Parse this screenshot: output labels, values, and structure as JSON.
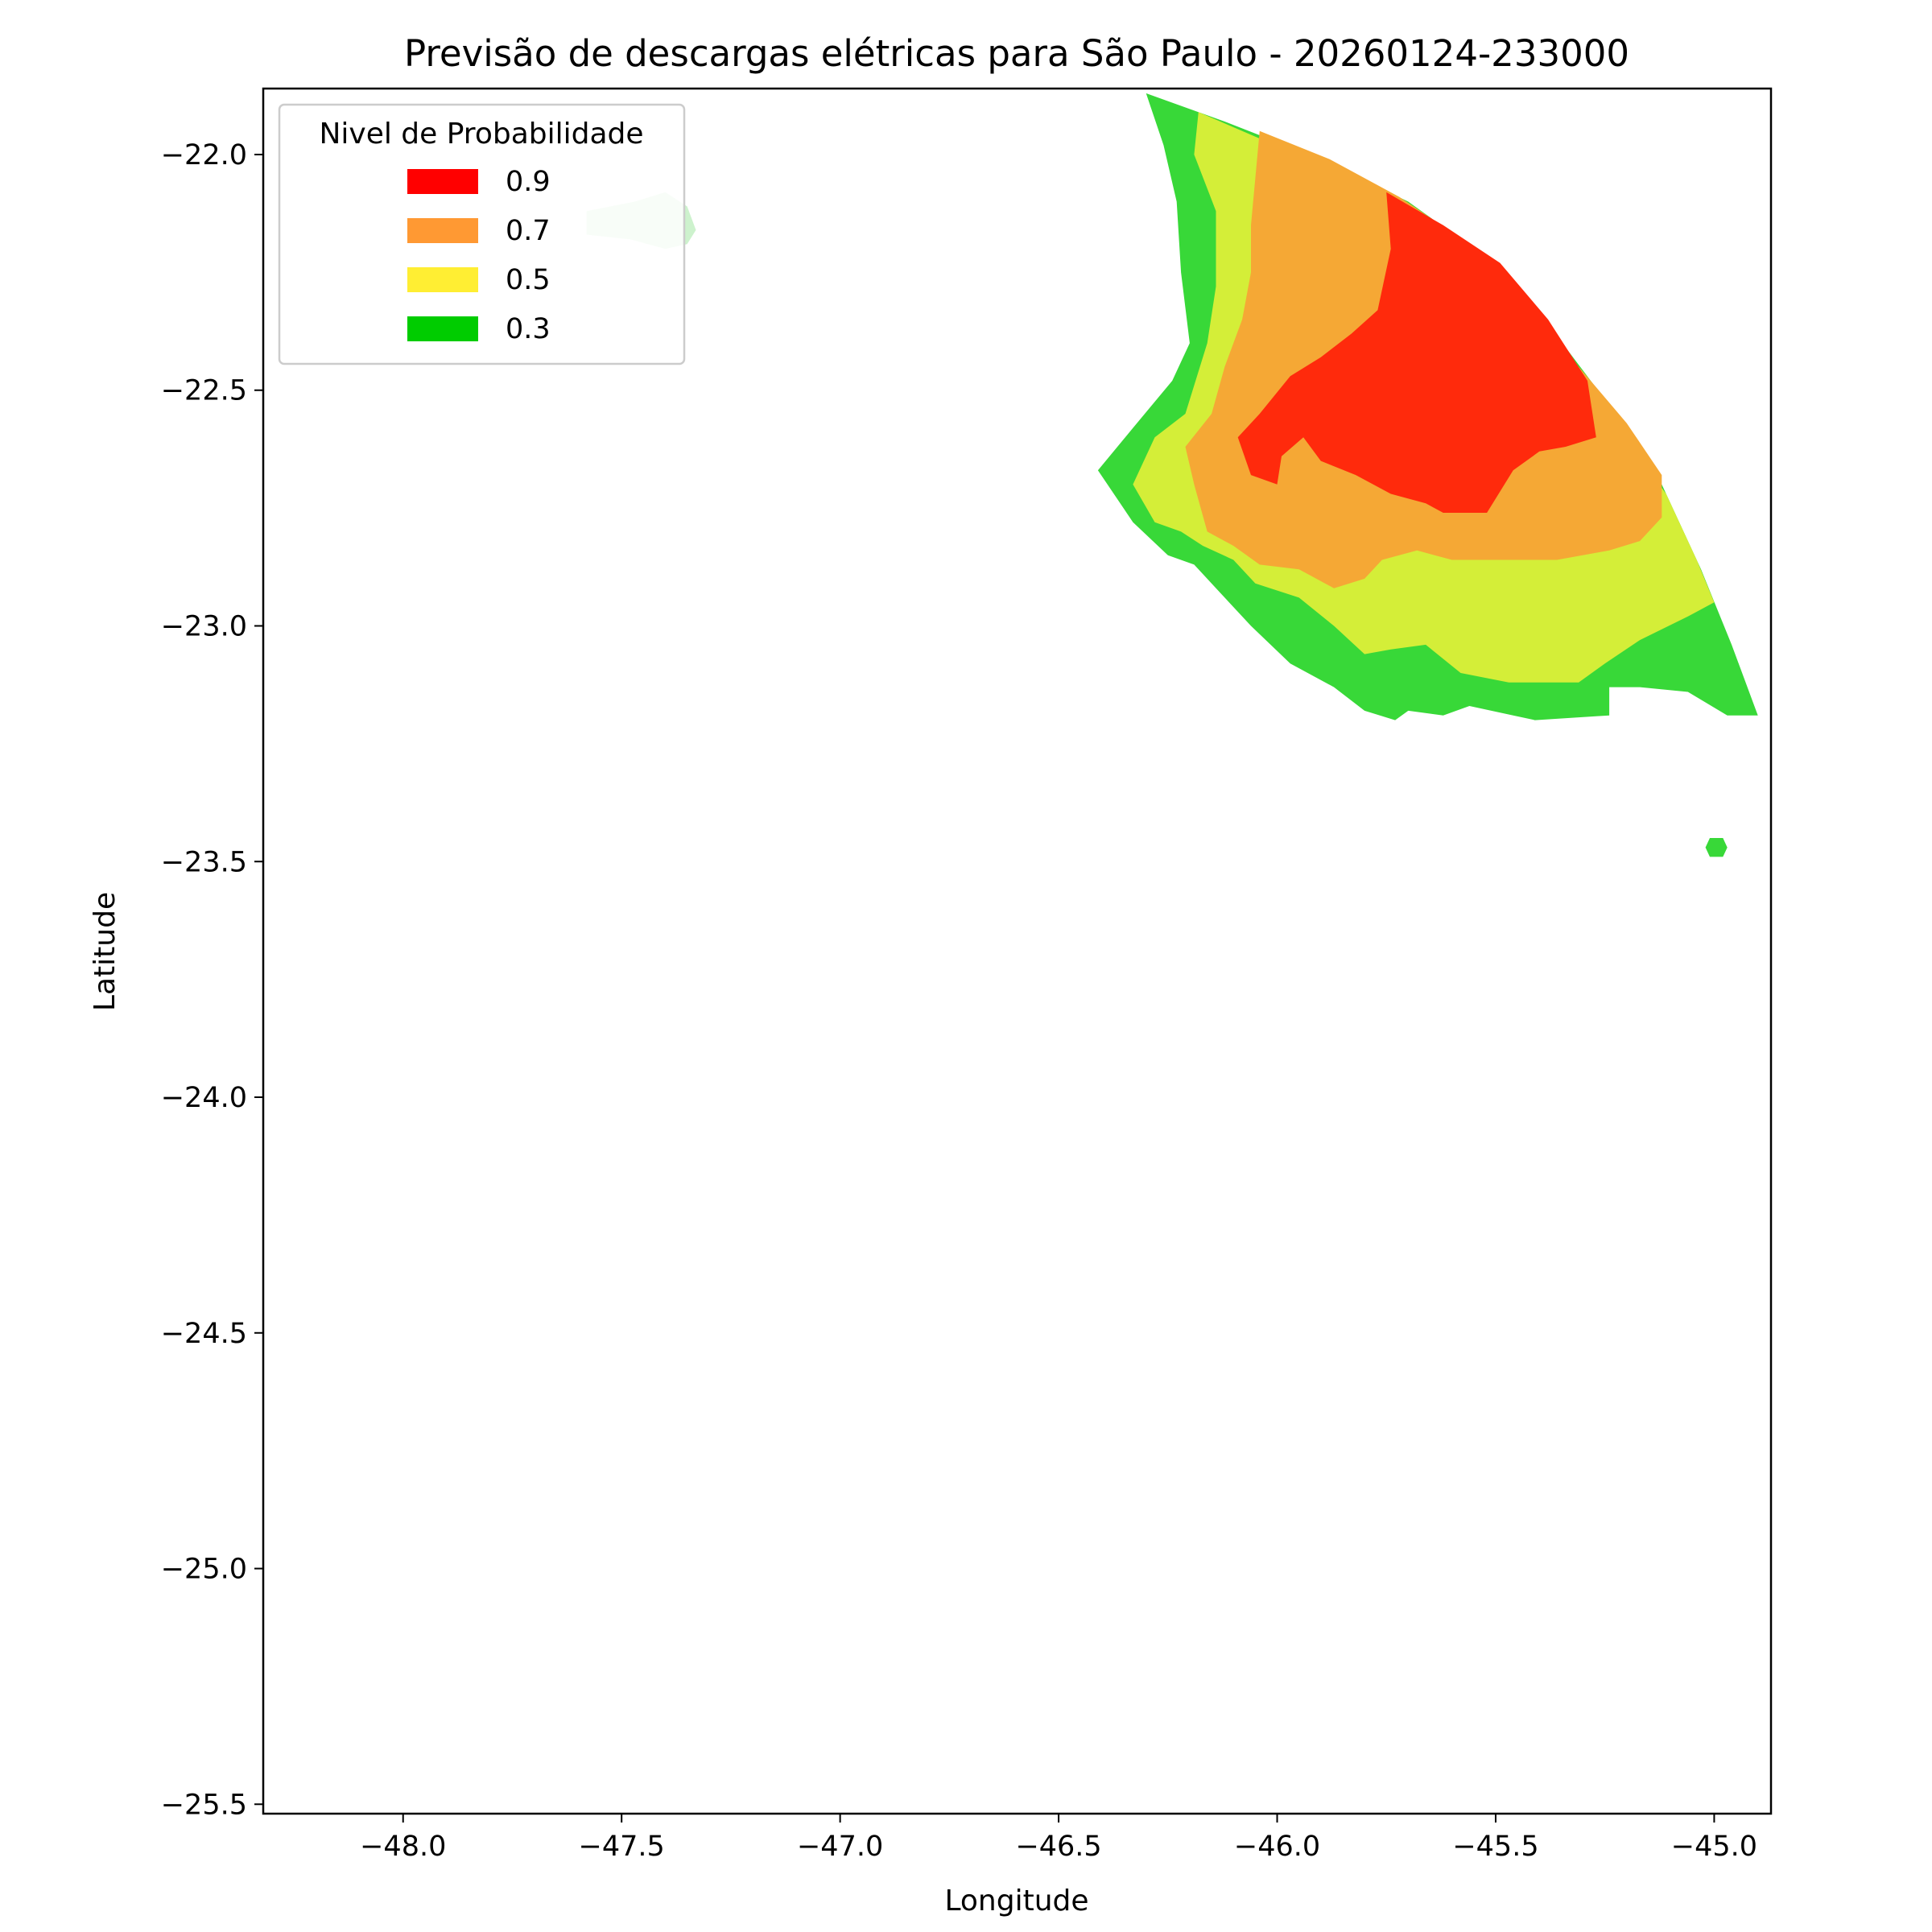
{
  "chart_data": {
    "type": "map",
    "title": "Previsão de descargas elétricas para São Paulo - 20260124-233000",
    "xlabel": "Longitude",
    "ylabel": "Latitude",
    "xlim": [
      -48.32,
      -44.87
    ],
    "ylim": [
      -25.52,
      -21.86
    ],
    "xticks": [
      -48.0,
      -47.5,
      -47.0,
      -46.5,
      -46.0,
      -45.5,
      -45.0
    ],
    "xtick_labels": [
      "−48.0",
      "−47.5",
      "−47.0",
      "−46.5",
      "−46.0",
      "−45.5",
      "−45.0"
    ],
    "yticks": [
      -22.0,
      -22.5,
      -23.0,
      -23.5,
      -24.0,
      -24.5,
      -25.0,
      -25.5
    ],
    "ytick_labels": [
      "−22.0",
      "−22.5",
      "−23.0",
      "−23.5",
      "−24.0",
      "−24.5",
      "−25.0",
      "−25.5"
    ],
    "grid": false,
    "legend": {
      "title": "Nivel de Probabilidade",
      "placement": "top-left",
      "entries": [
        {
          "label": "0.9",
          "color": "#ff0000"
        },
        {
          "label": "0.7",
          "color": "#ff9933"
        },
        {
          "label": "0.5",
          "color": "#ffee33"
        },
        {
          "label": "0.3",
          "color": "#00cc00"
        }
      ]
    },
    "regions": [
      {
        "level": "0.3",
        "color": "#38d838",
        "polygon": [
          [
            -46.3,
            -21.87
          ],
          [
            -46.12,
            -21.93
          ],
          [
            -45.9,
            -22.01
          ],
          [
            -45.7,
            -22.1
          ],
          [
            -45.52,
            -22.22
          ],
          [
            -45.38,
            -22.36
          ],
          [
            -45.25,
            -22.52
          ],
          [
            -45.12,
            -22.7
          ],
          [
            -45.03,
            -22.88
          ],
          [
            -44.96,
            -23.04
          ],
          [
            -44.9,
            -23.19
          ],
          [
            -44.97,
            -23.19
          ],
          [
            -45.06,
            -23.14
          ],
          [
            -45.17,
            -23.13
          ],
          [
            -45.24,
            -23.13
          ],
          [
            -45.24,
            -23.19
          ],
          [
            -45.41,
            -23.2
          ],
          [
            -45.56,
            -23.17
          ],
          [
            -45.62,
            -23.19
          ],
          [
            -45.7,
            -23.18
          ],
          [
            -45.73,
            -23.2
          ],
          [
            -45.8,
            -23.18
          ],
          [
            -45.87,
            -23.13
          ],
          [
            -45.97,
            -23.08
          ],
          [
            -46.06,
            -23.0
          ],
          [
            -46.13,
            -22.93
          ],
          [
            -46.19,
            -22.87
          ],
          [
            -46.25,
            -22.85
          ],
          [
            -46.33,
            -22.78
          ],
          [
            -46.41,
            -22.67
          ],
          [
            -46.33,
            -22.58
          ],
          [
            -46.24,
            -22.48
          ],
          [
            -46.2,
            -22.4
          ],
          [
            -46.22,
            -22.25
          ],
          [
            -46.23,
            -22.1
          ],
          [
            -46.26,
            -21.98
          ]
        ]
      },
      {
        "level": "0.5",
        "color": "#d4ee38",
        "polygon": [
          [
            -46.18,
            -21.91
          ],
          [
            -45.98,
            -21.99
          ],
          [
            -45.8,
            -22.08
          ],
          [
            -45.62,
            -22.18
          ],
          [
            -45.47,
            -22.3
          ],
          [
            -45.34,
            -22.44
          ],
          [
            -45.22,
            -22.58
          ],
          [
            -45.11,
            -22.72
          ],
          [
            -45.04,
            -22.86
          ],
          [
            -45.0,
            -22.95
          ],
          [
            -45.06,
            -22.98
          ],
          [
            -45.17,
            -23.03
          ],
          [
            -45.25,
            -23.08
          ],
          [
            -45.31,
            -23.12
          ],
          [
            -45.47,
            -23.12
          ],
          [
            -45.58,
            -23.1
          ],
          [
            -45.66,
            -23.04
          ],
          [
            -45.74,
            -23.05
          ],
          [
            -45.8,
            -23.06
          ],
          [
            -45.87,
            -23.0
          ],
          [
            -45.95,
            -22.94
          ],
          [
            -46.05,
            -22.91
          ],
          [
            -46.1,
            -22.86
          ],
          [
            -46.17,
            -22.83
          ],
          [
            -46.22,
            -22.8
          ],
          [
            -46.28,
            -22.78
          ],
          [
            -46.33,
            -22.7
          ],
          [
            -46.28,
            -22.6
          ],
          [
            -46.21,
            -22.55
          ],
          [
            -46.16,
            -22.4
          ],
          [
            -46.14,
            -22.28
          ],
          [
            -46.14,
            -22.12
          ],
          [
            -46.19,
            -22.0
          ]
        ]
      },
      {
        "level": "0.7",
        "color": "#f5a835",
        "polygon": [
          [
            -46.04,
            -21.95
          ],
          [
            -45.88,
            -22.01
          ],
          [
            -45.72,
            -22.09
          ],
          [
            -45.56,
            -22.19
          ],
          [
            -45.43,
            -22.32
          ],
          [
            -45.31,
            -22.45
          ],
          [
            -45.2,
            -22.57
          ],
          [
            -45.12,
            -22.68
          ],
          [
            -45.12,
            -22.77
          ],
          [
            -45.17,
            -22.82
          ],
          [
            -45.24,
            -22.84
          ],
          [
            -45.36,
            -22.86
          ],
          [
            -45.47,
            -22.86
          ],
          [
            -45.6,
            -22.86
          ],
          [
            -45.68,
            -22.84
          ],
          [
            -45.76,
            -22.86
          ],
          [
            -45.8,
            -22.9
          ],
          [
            -45.87,
            -22.92
          ],
          [
            -45.95,
            -22.88
          ],
          [
            -46.04,
            -22.87
          ],
          [
            -46.1,
            -22.83
          ],
          [
            -46.16,
            -22.8
          ],
          [
            -46.19,
            -22.7
          ],
          [
            -46.21,
            -22.62
          ],
          [
            -46.15,
            -22.55
          ],
          [
            -46.12,
            -22.45
          ],
          [
            -46.08,
            -22.35
          ],
          [
            -46.06,
            -22.25
          ],
          [
            -46.06,
            -22.15
          ],
          [
            -46.05,
            -22.05
          ]
        ]
      },
      {
        "level": "0.9",
        "color": "#ff2a0c",
        "polygon": [
          [
            -45.75,
            -22.08
          ],
          [
            -45.62,
            -22.15
          ],
          [
            -45.49,
            -22.23
          ],
          [
            -45.38,
            -22.35
          ],
          [
            -45.29,
            -22.48
          ],
          [
            -45.27,
            -22.6
          ],
          [
            -45.34,
            -22.62
          ],
          [
            -45.4,
            -22.63
          ],
          [
            -45.46,
            -22.67
          ],
          [
            -45.52,
            -22.76
          ],
          [
            -45.62,
            -22.76
          ],
          [
            -45.66,
            -22.74
          ],
          [
            -45.74,
            -22.72
          ],
          [
            -45.82,
            -22.68
          ],
          [
            -45.9,
            -22.65
          ],
          [
            -45.94,
            -22.6
          ],
          [
            -45.99,
            -22.64
          ],
          [
            -46.0,
            -22.7
          ],
          [
            -46.06,
            -22.68
          ],
          [
            -46.09,
            -22.6
          ],
          [
            -46.04,
            -22.55
          ],
          [
            -45.97,
            -22.47
          ],
          [
            -45.9,
            -22.43
          ],
          [
            -45.83,
            -22.38
          ],
          [
            -45.77,
            -22.33
          ],
          [
            -45.74,
            -22.2
          ]
        ]
      },
      {
        "level": "0.3",
        "color": "#38d838",
        "polygon": [
          [
            -45.01,
            -23.45
          ],
          [
            -44.98,
            -23.45
          ],
          [
            -44.97,
            -23.47
          ],
          [
            -44.98,
            -23.49
          ],
          [
            -45.01,
            -23.49
          ],
          [
            -45.02,
            -23.47
          ]
        ]
      },
      {
        "level": "",
        "color": "#cdf2cd",
        "polygon": [
          [
            -47.58,
            -22.12
          ],
          [
            -47.47,
            -22.1
          ],
          [
            -47.4,
            -22.08
          ],
          [
            -47.35,
            -22.11
          ],
          [
            -47.33,
            -22.16
          ],
          [
            -47.35,
            -22.19
          ],
          [
            -47.4,
            -22.2
          ],
          [
            -47.48,
            -22.18
          ],
          [
            -47.58,
            -22.17
          ]
        ]
      }
    ]
  }
}
